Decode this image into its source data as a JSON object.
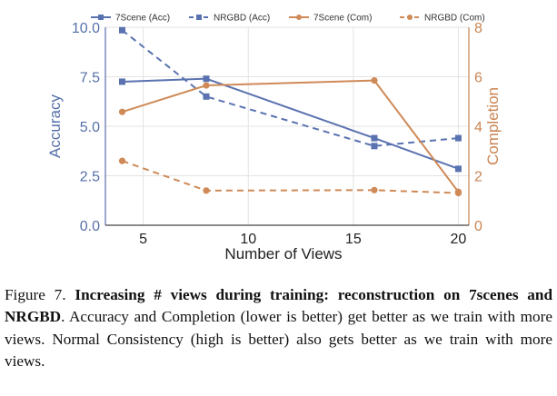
{
  "chart_data": {
    "type": "line",
    "xlabel": "Number of Views",
    "ylabel": "Accuracy",
    "y2label": "Completion",
    "xlim": [
      3.2,
      20.5
    ],
    "ylim": [
      0,
      10
    ],
    "y2lim": [
      0,
      8
    ],
    "xticks": [
      5,
      10,
      15,
      20
    ],
    "yticks": [
      "0.0",
      "2.5",
      "5.0",
      "7.5",
      "10.0"
    ],
    "y2ticks": [
      "0",
      "2",
      "4",
      "6",
      "8"
    ],
    "grid": true,
    "legend_position": "top",
    "series": [
      {
        "name": "7Scene (Acc)",
        "axis": "left",
        "color": "#5a72b0",
        "style": "solid",
        "x": [
          4,
          8,
          16,
          20
        ],
        "values": [
          7.25,
          7.4,
          4.4,
          2.85
        ]
      },
      {
        "name": "NRGBD (Acc)",
        "axis": "left",
        "color": "#5a72b0",
        "style": "dashed",
        "x": [
          4,
          8,
          16,
          20
        ],
        "values": [
          9.85,
          6.5,
          4.0,
          4.4
        ]
      },
      {
        "name": "7Scene (Com)",
        "axis": "right",
        "color": "#cf8a57",
        "style": "solid",
        "x": [
          4,
          8,
          16,
          20
        ],
        "values": [
          4.58,
          5.65,
          5.85,
          1.35
        ]
      },
      {
        "name": "NRGBD (Com)",
        "axis": "right",
        "color": "#cf8a57",
        "style": "dashed",
        "x": [
          4,
          8,
          16,
          20
        ],
        "values": [
          2.6,
          1.4,
          1.42,
          1.3
        ]
      }
    ]
  },
  "caption": {
    "label": "Figure 7.",
    "bold": "Increasing # views during training: reconstruction on 7scenes and NRGBD",
    "rest": ". Accuracy and Completion (lower is better) get better as we train with more views. Normal Consistency (high is better) also gets better as we train with more views."
  }
}
